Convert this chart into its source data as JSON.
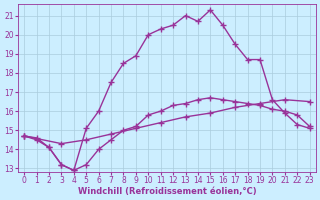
{
  "xlabel": "Windchill (Refroidissement éolien,°C)",
  "background_color": "#cceeff",
  "line_color": "#993399",
  "grid_color": "#aaccdd",
  "xlim": [
    -0.5,
    23.5
  ],
  "ylim": [
    12.8,
    21.6
  ],
  "xticks": [
    0,
    1,
    2,
    3,
    4,
    5,
    6,
    7,
    8,
    9,
    10,
    11,
    12,
    13,
    14,
    15,
    16,
    17,
    18,
    19,
    20,
    21,
    22,
    23
  ],
  "yticks": [
    13,
    14,
    15,
    16,
    17,
    18,
    19,
    20,
    21
  ],
  "line1_x": [
    0,
    1,
    2,
    3,
    4,
    5,
    6,
    7,
    8,
    9,
    10,
    11,
    12,
    13,
    14,
    15,
    16,
    17,
    18,
    19,
    20,
    21,
    22,
    23
  ],
  "line1_y": [
    14.7,
    14.6,
    14.1,
    13.2,
    12.9,
    15.1,
    16.0,
    17.5,
    18.5,
    18.9,
    20.0,
    20.3,
    20.5,
    21.0,
    20.7,
    21.3,
    20.5,
    19.5,
    18.7,
    18.7,
    16.6,
    15.9,
    15.3,
    15.1
  ],
  "line2_x": [
    0,
    3,
    5,
    7,
    9,
    11,
    13,
    15,
    17,
    19,
    21,
    23
  ],
  "line2_y": [
    14.7,
    14.3,
    14.5,
    14.8,
    15.1,
    15.4,
    15.7,
    15.9,
    16.2,
    16.4,
    16.6,
    16.5
  ],
  "line3_x": [
    0,
    1,
    2,
    3,
    4,
    5,
    6,
    7,
    8,
    9,
    10,
    11,
    12,
    13,
    14,
    15,
    16,
    17,
    18,
    19,
    20,
    21,
    22,
    23
  ],
  "line3_y": [
    14.7,
    14.5,
    14.1,
    13.2,
    12.9,
    13.2,
    14.0,
    14.5,
    15.0,
    15.2,
    15.8,
    16.0,
    16.3,
    16.4,
    16.6,
    16.7,
    16.6,
    16.5,
    16.4,
    16.3,
    16.1,
    16.0,
    15.8,
    15.2
  ],
  "marker": "+",
  "markersize": 4,
  "linewidth": 1.0,
  "tick_fontsize": 5.5,
  "label_fontsize": 6.0
}
